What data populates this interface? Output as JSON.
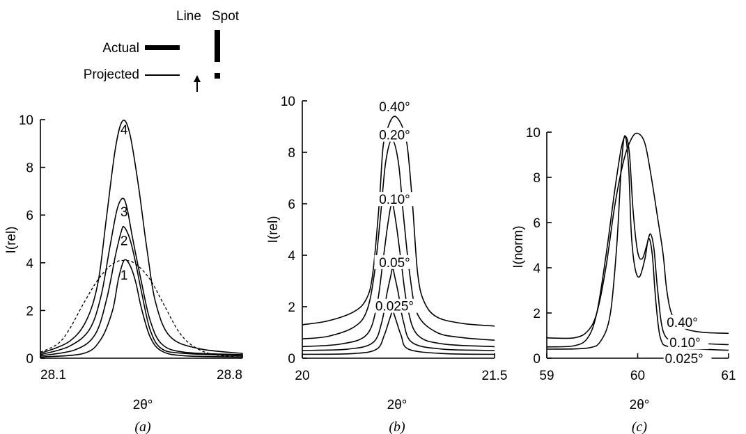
{
  "legend": {
    "col_line": "Line",
    "col_spot": "Spot",
    "row_actual": "Actual",
    "row_projected": "Projected"
  },
  "chart_data": [
    {
      "type": "line",
      "panel_label": "(a)",
      "xlabel": "2θ°",
      "ylabel": "I(rel)",
      "xlim": [
        28.1,
        28.8
      ],
      "ylim": [
        0,
        10
      ],
      "x_ticks": [
        "28.1",
        "28.8"
      ],
      "y_ticks": [
        "0",
        "2",
        "4",
        "6",
        "8",
        "10"
      ],
      "series": [
        {
          "label": "4",
          "style": "solid",
          "points": [
            [
              28.1,
              0.2
            ],
            [
              28.2,
              0.7
            ],
            [
              28.26,
              1.6
            ],
            [
              28.3,
              3.2
            ],
            [
              28.33,
              6.0
            ],
            [
              28.36,
              8.8
            ],
            [
              28.385,
              9.95
            ],
            [
              28.41,
              9.4
            ],
            [
              28.44,
              7.2
            ],
            [
              28.47,
              4.5
            ],
            [
              28.5,
              2.3
            ],
            [
              28.55,
              0.9
            ],
            [
              28.65,
              0.4
            ],
            [
              28.8,
              0.2
            ]
          ]
        },
        {
          "label": "3",
          "style": "solid",
          "points": [
            [
              28.1,
              0.15
            ],
            [
              28.2,
              0.5
            ],
            [
              28.27,
              1.2
            ],
            [
              28.31,
              2.6
            ],
            [
              28.34,
              4.6
            ],
            [
              28.365,
              6.2
            ],
            [
              28.385,
              6.7
            ],
            [
              28.4,
              6.3
            ],
            [
              28.42,
              5.0
            ],
            [
              28.45,
              3.2
            ],
            [
              28.48,
              1.6
            ],
            [
              28.52,
              0.6
            ],
            [
              28.6,
              0.25
            ],
            [
              28.8,
              0.15
            ]
          ]
        },
        {
          "label": "2",
          "style": "solid",
          "points": [
            [
              28.1,
              0.1
            ],
            [
              28.22,
              0.35
            ],
            [
              28.29,
              1.0
            ],
            [
              28.33,
              2.5
            ],
            [
              28.36,
              4.3
            ],
            [
              28.38,
              5.3
            ],
            [
              28.39,
              5.5
            ],
            [
              28.41,
              5.0
            ],
            [
              28.43,
              4.0
            ],
            [
              28.45,
              2.8
            ],
            [
              28.48,
              1.2
            ],
            [
              28.52,
              0.4
            ],
            [
              28.6,
              0.2
            ],
            [
              28.8,
              0.1
            ]
          ]
        },
        {
          "label": "1",
          "style": "solid",
          "points": [
            [
              28.1,
              0.05
            ],
            [
              28.25,
              0.2
            ],
            [
              28.31,
              0.8
            ],
            [
              28.35,
              2.0
            ],
            [
              28.37,
              3.3
            ],
            [
              28.39,
              4.1
            ],
            [
              28.41,
              3.9
            ],
            [
              28.43,
              3.2
            ],
            [
              28.45,
              2.1
            ],
            [
              28.48,
              0.9
            ],
            [
              28.52,
              0.3
            ],
            [
              28.6,
              0.1
            ],
            [
              28.8,
              0.05
            ]
          ]
        },
        {
          "label": "",
          "style": "dashed",
          "points": [
            [
              28.1,
              0.25
            ],
            [
              28.16,
              0.6
            ],
            [
              28.2,
              1.2
            ],
            [
              28.25,
              2.3
            ],
            [
              28.3,
              3.3
            ],
            [
              28.35,
              3.95
            ],
            [
              28.39,
              4.1
            ],
            [
              28.43,
              3.95
            ],
            [
              28.48,
              3.3
            ],
            [
              28.53,
              2.2
            ],
            [
              28.58,
              1.1
            ],
            [
              28.63,
              0.5
            ],
            [
              28.7,
              0.15
            ],
            [
              28.8,
              0.05
            ]
          ]
        }
      ]
    },
    {
      "type": "line",
      "panel_label": "(b)",
      "xlabel": "2θ°",
      "ylabel": "I(rel)",
      "xlim": [
        20,
        21.5
      ],
      "ylim": [
        0,
        10
      ],
      "x_ticks": [
        "20",
        "21.5"
      ],
      "y_ticks": [
        "0",
        "2",
        "4",
        "6",
        "8",
        "10"
      ],
      "series": [
        {
          "label": "0.40°",
          "style": "solid",
          "points": [
            [
              20,
              1.3
            ],
            [
              20.2,
              1.45
            ],
            [
              20.4,
              1.8
            ],
            [
              20.5,
              2.3
            ],
            [
              20.55,
              3.3
            ],
            [
              20.6,
              6.0
            ],
            [
              20.63,
              8.2
            ],
            [
              20.67,
              9.0
            ],
            [
              20.72,
              9.4
            ],
            [
              20.78,
              9.0
            ],
            [
              20.82,
              8.2
            ],
            [
              20.86,
              6.0
            ],
            [
              20.9,
              3.3
            ],
            [
              20.95,
              2.2
            ],
            [
              21.05,
              1.6
            ],
            [
              21.25,
              1.35
            ],
            [
              21.5,
              1.25
            ]
          ]
        },
        {
          "label": "0.20°",
          "style": "solid",
          "points": [
            [
              20,
              0.75
            ],
            [
              20.2,
              0.85
            ],
            [
              20.4,
              1.2
            ],
            [
              20.5,
              1.8
            ],
            [
              20.56,
              3.2
            ],
            [
              20.61,
              5.5
            ],
            [
              20.65,
              7.6
            ],
            [
              20.7,
              8.5
            ],
            [
              20.75,
              7.6
            ],
            [
              20.79,
              5.5
            ],
            [
              20.84,
              3.2
            ],
            [
              20.9,
              1.7
            ],
            [
              21.05,
              1.0
            ],
            [
              21.25,
              0.8
            ],
            [
              21.5,
              0.7
            ]
          ]
        },
        {
          "label": "0.10°",
          "style": "solid",
          "points": [
            [
              20,
              0.45
            ],
            [
              20.3,
              0.55
            ],
            [
              20.5,
              0.9
            ],
            [
              20.58,
              2.0
            ],
            [
              20.63,
              3.8
            ],
            [
              20.67,
              5.3
            ],
            [
              20.7,
              6.0
            ],
            [
              20.73,
              5.3
            ],
            [
              20.77,
              3.8
            ],
            [
              20.82,
              2.0
            ],
            [
              20.9,
              0.9
            ],
            [
              21.1,
              0.55
            ],
            [
              21.5,
              0.45
            ]
          ]
        },
        {
          "label": "0.05°",
          "style": "solid",
          "points": [
            [
              20,
              0.3
            ],
            [
              20.35,
              0.35
            ],
            [
              20.55,
              0.6
            ],
            [
              20.62,
              1.4
            ],
            [
              20.66,
              2.5
            ],
            [
              20.69,
              3.2
            ],
            [
              20.705,
              3.5
            ],
            [
              20.72,
              3.2
            ],
            [
              20.75,
              2.5
            ],
            [
              20.79,
              1.4
            ],
            [
              20.86,
              0.6
            ],
            [
              21.1,
              0.35
            ],
            [
              21.5,
              0.3
            ]
          ]
        },
        {
          "label": "0.025°",
          "style": "solid",
          "points": [
            [
              20,
              0.15
            ],
            [
              20.4,
              0.18
            ],
            [
              20.58,
              0.35
            ],
            [
              20.64,
              0.9
            ],
            [
              20.68,
              1.5
            ],
            [
              20.705,
              1.8
            ],
            [
              20.73,
              1.5
            ],
            [
              20.77,
              0.9
            ],
            [
              20.83,
              0.35
            ],
            [
              21.1,
              0.18
            ],
            [
              21.5,
              0.15
            ]
          ]
        }
      ]
    },
    {
      "type": "line",
      "panel_label": "(c)",
      "xlabel": "2θ°",
      "ylabel": "I(norm)",
      "xlim": [
        59,
        61
      ],
      "ylim": [
        0,
        10
      ],
      "x_ticks": [
        "59",
        "60",
        "61"
      ],
      "y_ticks": [
        "0",
        "2",
        "4",
        "6",
        "8",
        "10"
      ],
      "series": [
        {
          "label": "0.40°",
          "style": "solid",
          "points": [
            [
              59,
              0.9
            ],
            [
              59.3,
              0.9
            ],
            [
              59.45,
              1.2
            ],
            [
              59.55,
              2.0
            ],
            [
              59.65,
              4.0
            ],
            [
              59.75,
              6.8
            ],
            [
              59.85,
              8.8
            ],
            [
              59.93,
              9.7
            ],
            [
              60.0,
              9.95
            ],
            [
              60.08,
              9.5
            ],
            [
              60.15,
              8.0
            ],
            [
              60.22,
              6.2
            ],
            [
              60.28,
              4.6
            ],
            [
              60.32,
              3.0
            ],
            [
              60.38,
              1.9
            ],
            [
              60.5,
              1.35
            ],
            [
              60.7,
              1.15
            ],
            [
              61,
              1.1
            ]
          ]
        },
        {
          "label": "0.10°",
          "style": "solid",
          "points": [
            [
              59,
              0.5
            ],
            [
              59.3,
              0.55
            ],
            [
              59.45,
              0.9
            ],
            [
              59.55,
              2.0
            ],
            [
              59.65,
              4.5
            ],
            [
              59.75,
              7.5
            ],
            [
              59.82,
              9.3
            ],
            [
              59.87,
              9.8
            ],
            [
              59.91,
              9.0
            ],
            [
              59.95,
              6.5
            ],
            [
              60.0,
              4.7
            ],
            [
              60.05,
              4.4
            ],
            [
              60.1,
              5.0
            ],
            [
              60.14,
              5.5
            ],
            [
              60.18,
              4.8
            ],
            [
              60.22,
              3.0
            ],
            [
              60.28,
              1.2
            ],
            [
              60.4,
              0.75
            ],
            [
              60.7,
              0.65
            ],
            [
              61,
              0.6
            ]
          ]
        },
        {
          "label": "0.025°",
          "style": "solid",
          "points": [
            [
              59,
              0.4
            ],
            [
              59.45,
              0.45
            ],
            [
              59.6,
              0.8
            ],
            [
              59.7,
              2.0
            ],
            [
              59.77,
              5.0
            ],
            [
              59.82,
              8.5
            ],
            [
              59.86,
              9.85
            ],
            [
              59.9,
              8.5
            ],
            [
              59.93,
              5.5
            ],
            [
              59.97,
              4.0
            ],
            [
              60.02,
              3.6
            ],
            [
              60.08,
              4.4
            ],
            [
              60.12,
              5.3
            ],
            [
              60.16,
              4.6
            ],
            [
              60.2,
              2.5
            ],
            [
              60.25,
              0.9
            ],
            [
              60.35,
              0.5
            ],
            [
              60.7,
              0.4
            ],
            [
              61,
              0.35
            ]
          ]
        }
      ]
    }
  ]
}
